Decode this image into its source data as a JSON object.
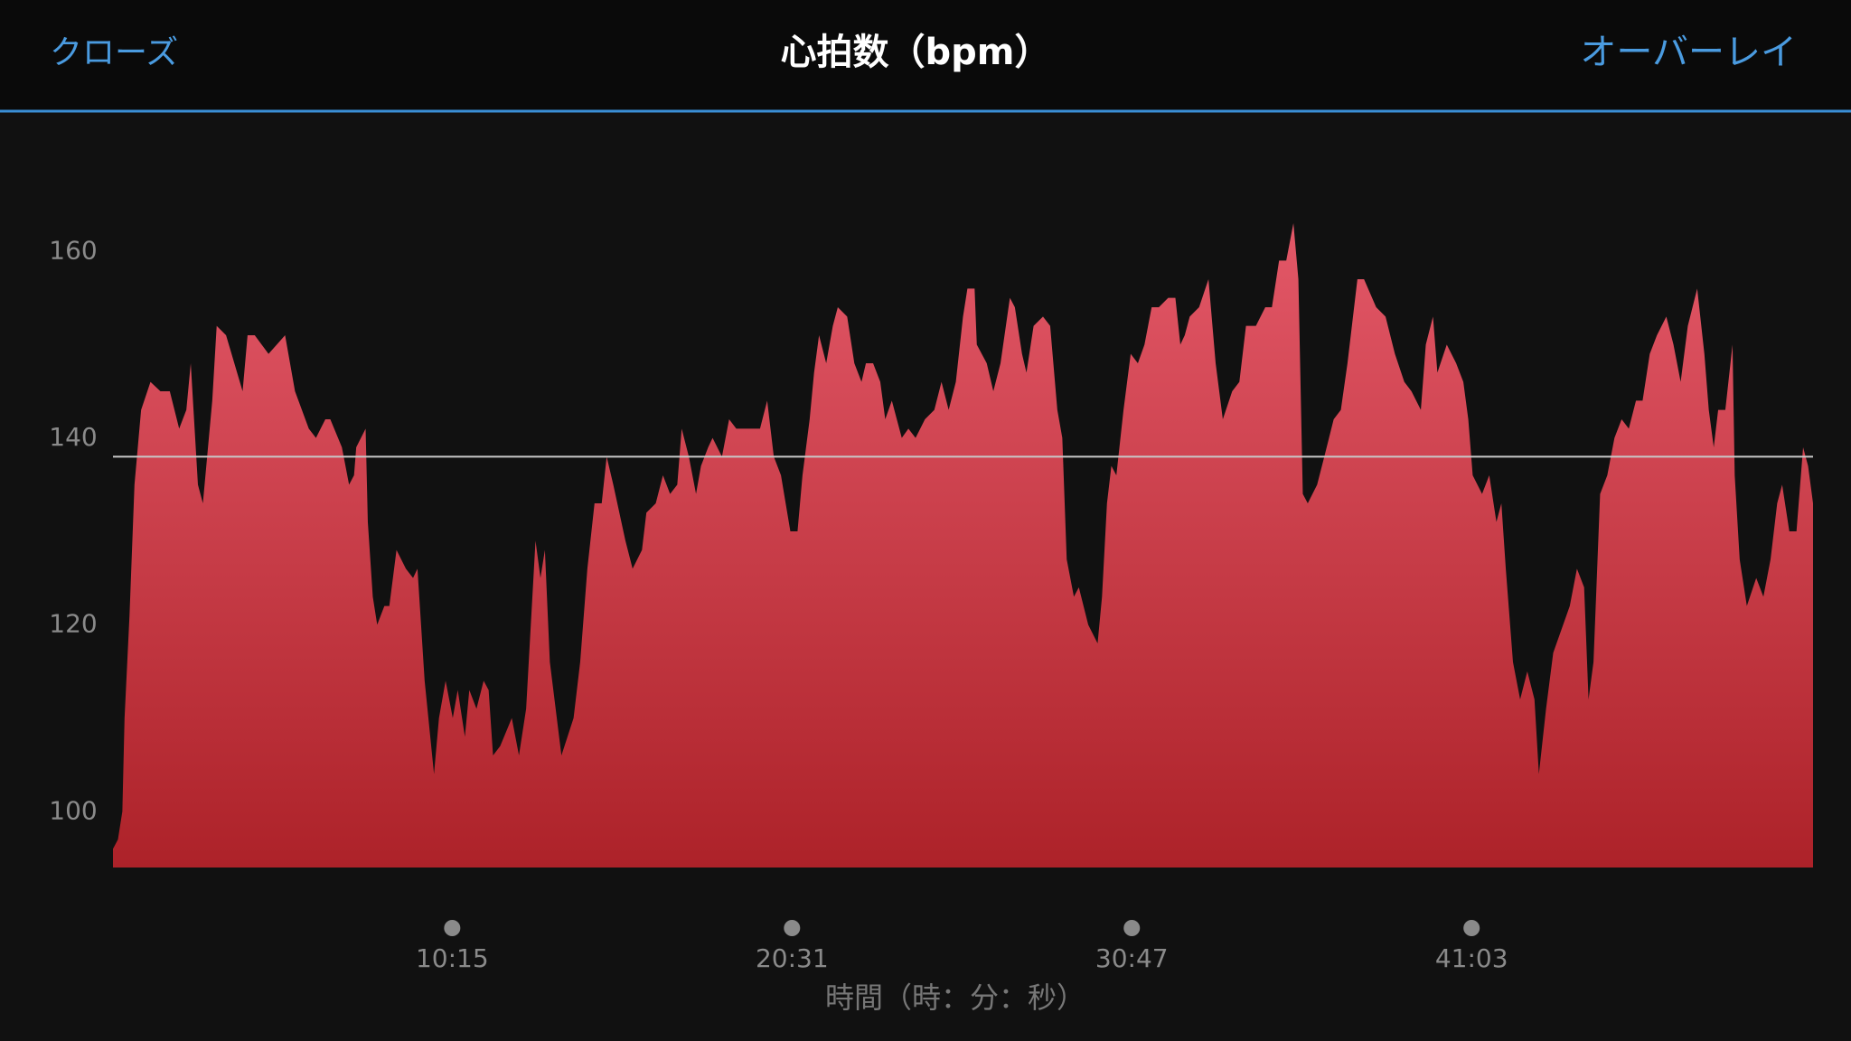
{
  "header": {
    "close": "クローズ",
    "title": "心拍数（bpm）",
    "overlay": "オーバーレイ"
  },
  "chart_data": {
    "type": "area",
    "x_label": "時間（時：分：秒）",
    "x": [
      0,
      9,
      17,
      21,
      30,
      39,
      51,
      68,
      86,
      103,
      120,
      133,
      141,
      154,
      163,
      180,
      188,
      205,
      235,
      244,
      257,
      282,
      312,
      330,
      355,
      368,
      385,
      394,
      415,
      428,
      437,
      441,
      458,
      462,
      471,
      479,
      492,
      501,
      514,
      531,
      544,
      552,
      565,
      582,
      591,
      603,
      616,
      625,
      638,
      646,
      659,
      672,
      681,
      689,
      702,
      723,
      736,
      749,
      766,
      775,
      783,
      792,
      813,
      835,
      847,
      860,
      873,
      886,
      895,
      907,
      929,
      942,
      959,
      967,
      984,
      997,
      1010,
      1023,
      1031,
      1044,
      1057,
      1066,
      1079,
      1087,
      1104,
      1117,
      1130,
      1173,
      1186,
      1198,
      1211,
      1228,
      1241,
      1250,
      1263,
      1271,
      1280,
      1293,
      1305,
      1314,
      1331,
      1344,
      1357,
      1365,
      1378,
      1391,
      1400,
      1412,
      1430,
      1442,
      1455,
      1472,
      1489,
      1502,
      1515,
      1528,
      1541,
      1549,
      1562,
      1566,
      1584,
      1596,
      1609,
      1626,
      1635,
      1648,
      1656,
      1669,
      1686,
      1699,
      1712,
      1721,
      1729,
      1742,
      1751,
      1768,
      1785,
      1793,
      1802,
      1810,
      1819,
      1832,
      1845,
      1858,
      1870,
      1883,
      1896,
      1913,
      1926,
      1935,
      1943,
      1952,
      1969,
      1986,
      1999,
      2012,
      2029,
      2042,
      2054,
      2072,
      2089,
      2101,
      2114,
      2127,
      2140,
      2149,
      2157,
      2166,
      2183,
      2196,
      2213,
      2226,
      2238,
      2256,
      2268,
      2290,
      2307,
      2324,
      2341,
      2354,
      2371,
      2380,
      2393,
      2401,
      2418,
      2435,
      2448,
      2457,
      2465,
      2482,
      2495,
      2508,
      2517,
      2525,
      2538,
      2551,
      2564,
      2577,
      2585,
      2598,
      2611,
      2641,
      2654,
      2667,
      2675,
      2684,
      2696,
      2709,
      2722,
      2735,
      2748,
      2761,
      2773,
      2786,
      2799,
      2816,
      2829,
      2842,
      2855,
      2872,
      2885,
      2893,
      2902,
      2910,
      2923,
      2936,
      2940,
      2949,
      2962,
      2979,
      2992,
      3005,
      3017,
      3026,
      3039,
      3052,
      3064,
      3073,
      3082
    ],
    "values": [
      97,
      98,
      101,
      111,
      122,
      136,
      144,
      147,
      146,
      146,
      142,
      144,
      149,
      136,
      134,
      145,
      153,
      152,
      146,
      152,
      152,
      150,
      152,
      146,
      142,
      141,
      143,
      143,
      140,
      136,
      137,
      140,
      142,
      132,
      124,
      121,
      123,
      123,
      129,
      127,
      126,
      127,
      115,
      105,
      111,
      115,
      111,
      114,
      109,
      114,
      112,
      115,
      114,
      107,
      108,
      111,
      107,
      112,
      130,
      126,
      129,
      117,
      107,
      111,
      117,
      127,
      134,
      134,
      139,
      136,
      130,
      127,
      129,
      133,
      134,
      137,
      135,
      136,
      142,
      139,
      135,
      138,
      140,
      141,
      139,
      143,
      142,
      142,
      145,
      139,
      137,
      131,
      131,
      137,
      143,
      148,
      152,
      149,
      153,
      155,
      154,
      149,
      147,
      149,
      149,
      147,
      143,
      145,
      141,
      142,
      141,
      143,
      144,
      147,
      144,
      147,
      154,
      157,
      157,
      151,
      149,
      146,
      149,
      156,
      155,
      150,
      148,
      153,
      154,
      153,
      144,
      141,
      128,
      124,
      125,
      121,
      119,
      124,
      134,
      138,
      137,
      144,
      150,
      149,
      151,
      155,
      155,
      156,
      156,
      151,
      152,
      154,
      155,
      158,
      149,
      143,
      146,
      147,
      153,
      153,
      155,
      155,
      160,
      160,
      164,
      158,
      135,
      134,
      136,
      139,
      143,
      144,
      149,
      158,
      158,
      155,
      154,
      150,
      147,
      146,
      144,
      151,
      154,
      148,
      151,
      149,
      147,
      143,
      137,
      135,
      137,
      132,
      134,
      127,
      117,
      113,
      116,
      113,
      105,
      112,
      118,
      123,
      127,
      125,
      113,
      117,
      135,
      137,
      141,
      143,
      142,
      145,
      145,
      150,
      152,
      154,
      151,
      147,
      153,
      157,
      150,
      144,
      140,
      144,
      144,
      151,
      137,
      128,
      123,
      126,
      124,
      128,
      134,
      136,
      131,
      131,
      140,
      138,
      134
    ],
    "xlim": [
      0,
      3082
    ],
    "xticks": [
      {
        "value": 615,
        "label": "10:15"
      },
      {
        "value": 1231,
        "label": "20:31"
      },
      {
        "value": 1847,
        "label": "30:47"
      },
      {
        "value": 2463,
        "label": "41:03"
      }
    ],
    "ylim": [
      95,
      170
    ],
    "yticks": [
      100,
      120,
      140,
      160
    ],
    "reference_line": 139,
    "color_top": "#e35868",
    "color_bottom": "#ad2229",
    "grid": false
  }
}
